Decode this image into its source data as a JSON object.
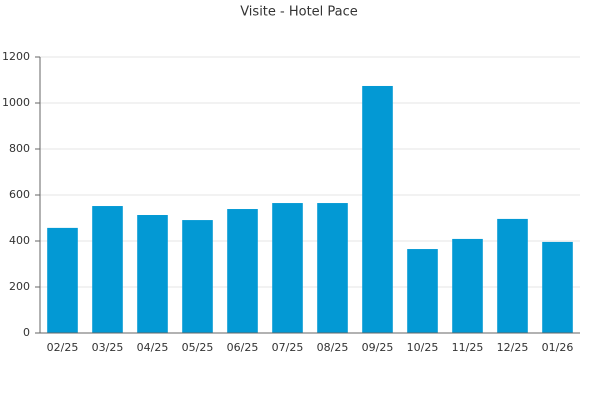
{
  "chart_data": {
    "type": "bar",
    "title": "Visite - Hotel Pace",
    "categories": [
      "02/25",
      "03/25",
      "04/25",
      "05/25",
      "06/25",
      "07/25",
      "08/25",
      "09/25",
      "10/25",
      "11/25",
      "12/25",
      "01/26"
    ],
    "values": [
      457,
      552,
      513,
      491,
      539,
      565,
      565,
      1074,
      365,
      409,
      496,
      396
    ],
    "color": "#0399d4",
    "ylim": [
      0,
      1200
    ],
    "yticks": [
      0,
      200,
      400,
      600,
      800,
      1000,
      1200
    ],
    "grid": true
  }
}
